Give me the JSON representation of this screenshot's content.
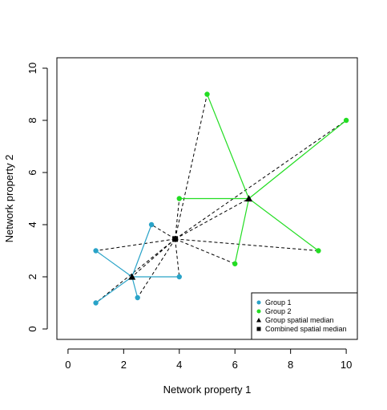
{
  "chart_data": {
    "type": "scatter",
    "xlabel": "Network property 1",
    "ylabel": "Network property 2",
    "xlim": [
      -0.4,
      10.4
    ],
    "ylim": [
      -0.4,
      10.4
    ],
    "xticks": [
      0,
      2,
      4,
      6,
      8,
      10
    ],
    "yticks": [
      0,
      2,
      4,
      6,
      8,
      10
    ],
    "grid": false,
    "legend_position": "bottom-right",
    "legend": [
      {
        "label": "Group 1",
        "marker": "circle",
        "color": "#29a3c8"
      },
      {
        "label": "Group 2",
        "marker": "circle",
        "color": "#22dd22"
      },
      {
        "label": "Group spatial median",
        "marker": "triangle",
        "color": "#000000"
      },
      {
        "label": "Combined spatial median",
        "marker": "square",
        "color": "#000000"
      }
    ],
    "series": [
      {
        "name": "Group 1",
        "color": "#29a3c8",
        "points": [
          [
            1,
            3
          ],
          [
            3,
            4
          ],
          [
            4,
            2
          ],
          [
            2.5,
            1.2
          ],
          [
            1,
            1
          ]
        ]
      },
      {
        "name": "Group 2",
        "color": "#22dd22",
        "points": [
          [
            5,
            9
          ],
          [
            10,
            8
          ],
          [
            4,
            5
          ],
          [
            6,
            2.5
          ],
          [
            9,
            3
          ]
        ]
      }
    ],
    "group_medians": [
      {
        "name": "Group 1",
        "x": 2.3,
        "y": 2.0
      },
      {
        "name": "Group 2",
        "x": 6.5,
        "y": 5.0
      }
    ],
    "combined_median": {
      "x": 3.85,
      "y": 3.45
    }
  }
}
